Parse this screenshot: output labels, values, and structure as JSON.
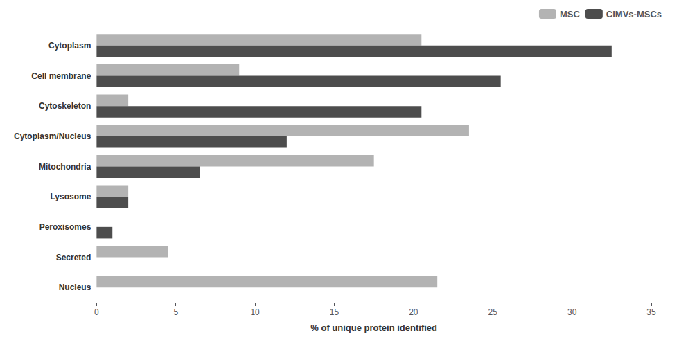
{
  "chart_data": {
    "type": "bar",
    "orientation": "horizontal",
    "categories": [
      "Cytoplasm",
      "Cell membrane",
      "Cytoskeleton",
      "Cytoplasm/Nucleus",
      "Mitochondria",
      "Lysosome",
      "Peroxisomes",
      "Secreted",
      "Nucleus"
    ],
    "series": [
      {
        "name": "MSC",
        "color": "#b3b3b3",
        "values": [
          20.5,
          9.0,
          2.0,
          23.5,
          17.5,
          2.0,
          0.0,
          4.5,
          21.5
        ]
      },
      {
        "name": "CIMVs-MSCs",
        "color": "#4d4d4d",
        "values": [
          32.5,
          25.5,
          20.5,
          12.0,
          6.5,
          2.0,
          1.0,
          0.0,
          0.0
        ]
      }
    ],
    "xlabel": "% of unique protein identified",
    "xlim": [
      0,
      35
    ],
    "xticks": [
      0,
      5,
      10,
      15,
      20,
      25,
      30,
      35
    ],
    "grid": false,
    "legend": "upper right"
  }
}
